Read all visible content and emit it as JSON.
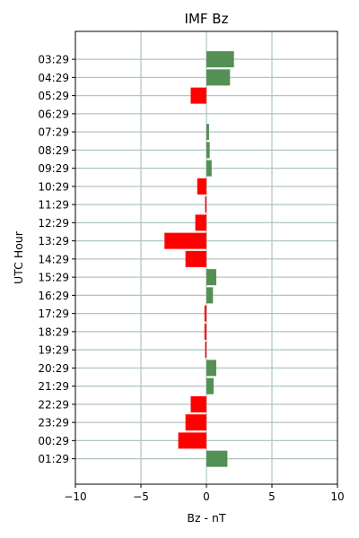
{
  "chart_data": {
    "type": "bar",
    "orientation": "horizontal",
    "title": "IMF Bz",
    "xlabel": "Bz - nT",
    "ylabel": "UTC Hour",
    "xlim": [
      -10,
      10
    ],
    "xticks": [
      -10,
      -5,
      0,
      5,
      10
    ],
    "xtick_labels": [
      "−10",
      "−5",
      "0",
      "5",
      "10"
    ],
    "grid": true,
    "colors": {
      "positive": "#548f54",
      "negative": "#ff0000",
      "grid": "#b0c4c4"
    },
    "categories": [
      "03:29",
      "04:29",
      "05:29",
      "06:29",
      "07:29",
      "08:29",
      "09:29",
      "10:29",
      "11:29",
      "12:29",
      "13:29",
      "14:29",
      "15:29",
      "16:29",
      "17:29",
      "18:29",
      "19:29",
      "20:29",
      "21:29",
      "22:29",
      "23:29",
      "00:29",
      "01:29"
    ],
    "values": [
      2.1,
      1.8,
      -1.2,
      0.0,
      0.2,
      0.25,
      0.4,
      -0.7,
      -0.1,
      -0.85,
      -3.2,
      -1.6,
      0.75,
      0.5,
      -0.15,
      -0.15,
      -0.1,
      0.75,
      0.55,
      -1.2,
      -1.6,
      -2.15,
      1.6
    ]
  }
}
